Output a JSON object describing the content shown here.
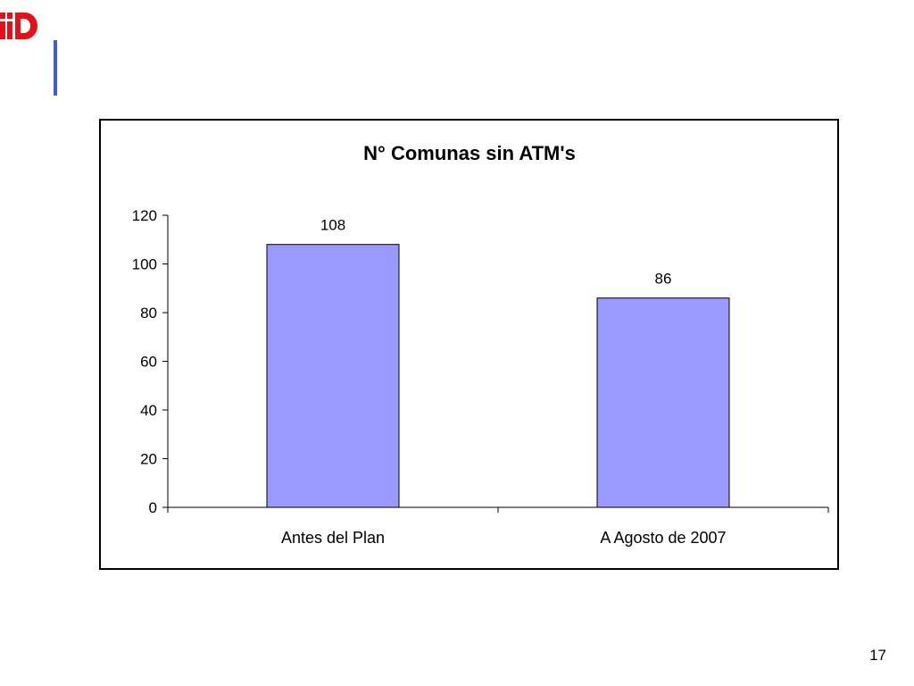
{
  "slide": {
    "page_number": "17",
    "accent_color": "#3b5bdb",
    "logo_color": "#e4111b",
    "logo_icon": "brand-logo-icon"
  },
  "chart_data": {
    "type": "bar",
    "title": "N° Comunas sin ATM's",
    "categories": [
      "Antes del Plan",
      "A Agosto de 2007"
    ],
    "values": [
      108,
      86
    ],
    "data_labels": [
      "108",
      "86"
    ],
    "xlabel": "",
    "ylabel": "",
    "ylim": [
      0,
      120
    ],
    "yticks": [
      0,
      20,
      40,
      60,
      80,
      100,
      120
    ],
    "grid": false,
    "legend": "none",
    "bar_color": "#9999ff",
    "bar_border_color": "#000000"
  }
}
